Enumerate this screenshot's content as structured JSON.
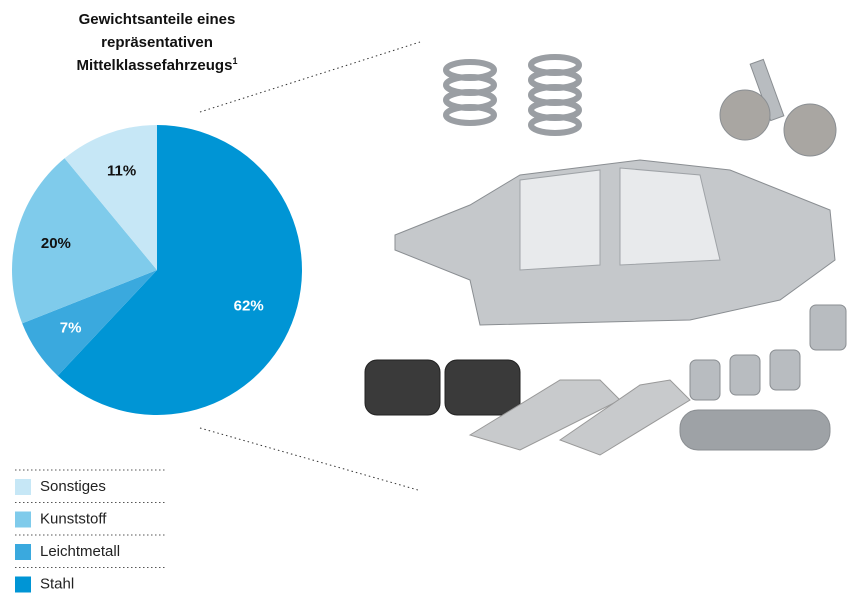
{
  "chart_data": {
    "type": "pie",
    "title": "Gewichtsanteile eines repräsentativen Mittelklassefahrzeugs",
    "title_note": "1",
    "categories": [
      "Stahl",
      "Leichtmetall",
      "Kunststoff",
      "Sonstiges"
    ],
    "values": [
      62,
      7,
      20,
      11
    ],
    "value_labels": [
      "62%",
      "7%",
      "20%",
      "11%"
    ],
    "colors": [
      "#0095d5",
      "#3aa9de",
      "#7fcbeb",
      "#c6e7f6"
    ]
  }
}
